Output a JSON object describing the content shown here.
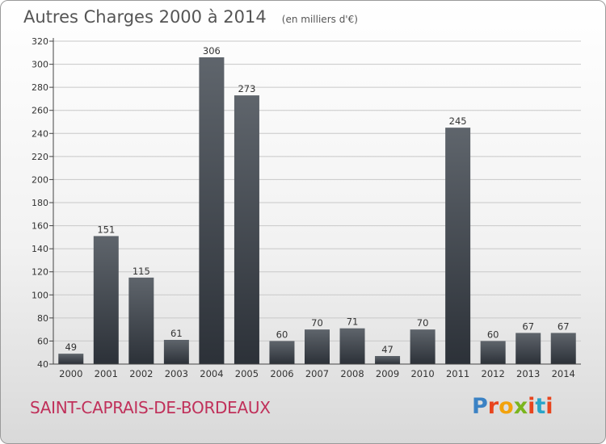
{
  "title": "Autres Charges 2000 à 2014",
  "unit": "(en milliers d'€)",
  "commune": "SAINT-CAPRAIS-DE-BORDEAUX",
  "logo": {
    "text": "Proxiti",
    "letter_colors": [
      "#3b82c4",
      "#e8451e",
      "#f2a20c",
      "#7ab51d",
      "#e8451e",
      "#2aa5c9",
      "#e8451e"
    ]
  },
  "colors": {
    "bar_top": "#5f656c",
    "bar_bottom": "#2c3138",
    "grid": "#c8c8c8",
    "axis": "#444444",
    "commune": "#c0305a"
  },
  "chart_data": {
    "type": "bar",
    "categories": [
      "2000",
      "2001",
      "2002",
      "2003",
      "2004",
      "2005",
      "2006",
      "2007",
      "2008",
      "2009",
      "2010",
      "2011",
      "2012",
      "2013",
      "2014"
    ],
    "values": [
      49,
      151,
      115,
      61,
      306,
      273,
      60,
      70,
      71,
      47,
      70,
      245,
      60,
      67,
      67
    ],
    "ylim": [
      40,
      320
    ],
    "yticks": [
      40,
      60,
      80,
      100,
      120,
      140,
      160,
      180,
      200,
      220,
      240,
      260,
      280,
      300,
      320
    ],
    "grid": true,
    "data_labels": true
  }
}
